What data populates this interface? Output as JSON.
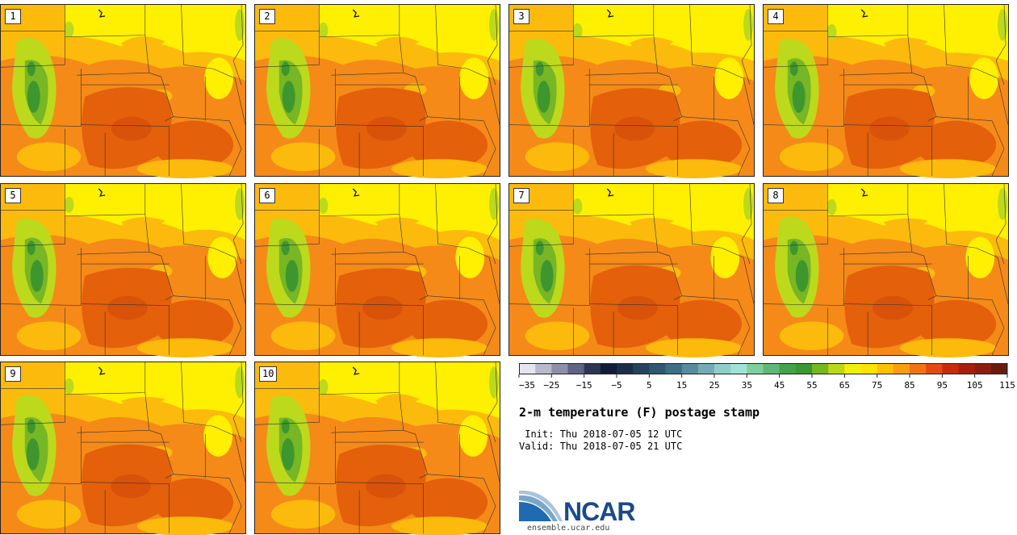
{
  "product": {
    "title": "2-m temperature (F) postage stamp",
    "init": " Init: Thu 2018-07-05 12 UTC",
    "valid": "Valid: Thu 2018-07-05 21 UTC"
  },
  "members": [
    {
      "label": "1"
    },
    {
      "label": "2"
    },
    {
      "label": "3"
    },
    {
      "label": "4"
    },
    {
      "label": "5"
    },
    {
      "label": "6"
    },
    {
      "label": "7"
    },
    {
      "label": "8"
    },
    {
      "label": "9"
    },
    {
      "label": "10"
    }
  ],
  "colorbar": {
    "ticks": [
      "-35",
      "-25",
      "-15",
      "-5",
      "5",
      "15",
      "25",
      "35",
      "45",
      "55",
      "65",
      "75",
      "85",
      "95",
      "105",
      "115"
    ],
    "colors": [
      "#e4e6ee",
      "#b7bacd",
      "#8c90ab",
      "#5e6483",
      "#2b3656",
      "#111d38",
      "#192f48",
      "#24445c",
      "#2f5870",
      "#3d6e83",
      "#578ca0",
      "#74acb6",
      "#8fcdc8",
      "#9fe3d6",
      "#7fcf9c",
      "#5fb877",
      "#44a24b",
      "#3a9732",
      "#74b81c",
      "#bbd816",
      "#f2f00a",
      "#ffe400",
      "#ffc000",
      "#f99c10",
      "#f27314",
      "#e44a10",
      "#c92a0c",
      "#a81e0c",
      "#8c1e10",
      "#6b1a10"
    ]
  },
  "logo": {
    "name": "NCAR",
    "url": "ensemble.ucar.edu"
  },
  "map_colors": {
    "hot": "#e4600a",
    "warm": "#f58a18",
    "mild": "#fbba0c",
    "cool": "#fef000",
    "green_light": "#bcd91c",
    "green_mid": "#77b624",
    "green_dark": "#3e962e",
    "boundary": "#333333"
  }
}
